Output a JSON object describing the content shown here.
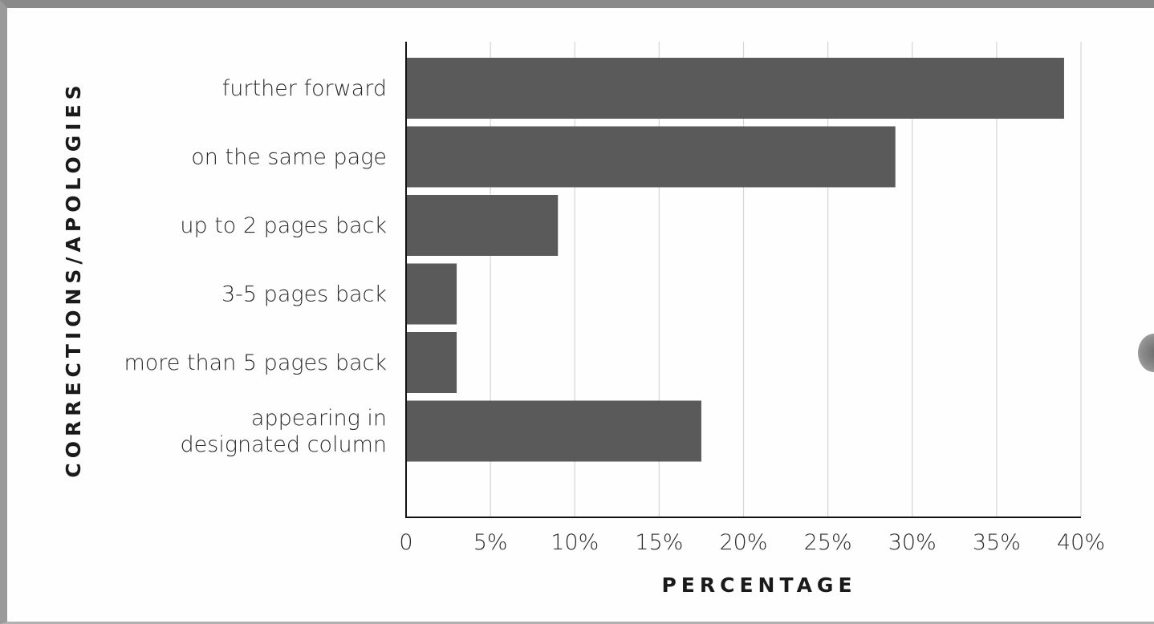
{
  "chart_data": {
    "type": "bar",
    "orientation": "horizontal",
    "categories": [
      [
        "further forward"
      ],
      [
        "on the same page"
      ],
      [
        "up to 2 pages back"
      ],
      [
        "3-5 pages back"
      ],
      [
        "more than 5 pages back"
      ],
      [
        "appearing in",
        "designated column"
      ]
    ],
    "values": [
      39,
      29,
      9,
      3,
      3,
      17.5
    ],
    "xlabel": "PERCENTAGE",
    "ylabel": "CORRECTIONS/APOLOGIES",
    "xlim": [
      0,
      40
    ],
    "xticks": [
      0,
      5,
      10,
      15,
      20,
      25,
      30,
      35,
      40
    ],
    "xtick_labels": [
      "0",
      "5%",
      "10%",
      "15%",
      "20%",
      "25%",
      "30%",
      "35%",
      "40%"
    ],
    "grid": true,
    "bar_color": "#5a5a5a"
  }
}
